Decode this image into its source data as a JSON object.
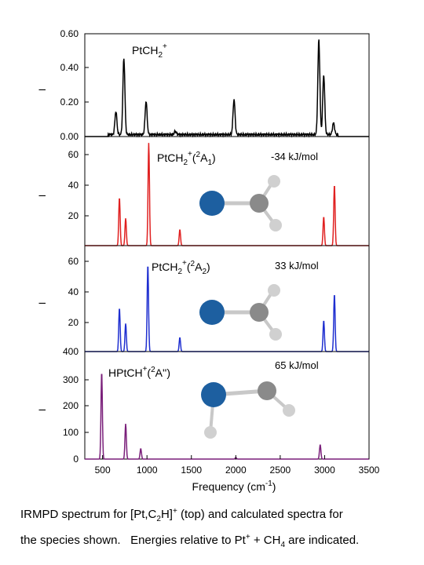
{
  "chart_data": {
    "type": "line",
    "xlabel": "Frequency (cm",
    "xlabel_sup": "-1",
    "xlabel_close": ")",
    "x_ticks": [
      "500",
      "1000",
      "1500",
      "2000",
      "2500",
      "3000",
      "3500"
    ],
    "x_tick_values": [
      500,
      1000,
      1500,
      2000,
      2500,
      3000,
      3500
    ],
    "xlim": [
      300,
      3500
    ],
    "panels": [
      {
        "name": "experiment",
        "label": "PtCH",
        "label_sub": "2",
        "label_sup": "+",
        "energy": "",
        "ylabel": "I",
        "y_ticks": [
          "0.00",
          "0.20",
          "0.40",
          "0.60"
        ],
        "ylim": [
          0,
          0.6
        ],
        "color": "#000000",
        "peaks": [
          {
            "x": 650,
            "y": 0.14
          },
          {
            "x": 740,
            "y": 0.46
          },
          {
            "x": 990,
            "y": 0.2
          },
          {
            "x": 1320,
            "y": 0.02
          },
          {
            "x": 1980,
            "y": 0.21
          },
          {
            "x": 2935,
            "y": 0.57
          },
          {
            "x": 2990,
            "y": 0.36
          },
          {
            "x": 3100,
            "y": 0.07
          }
        ]
      },
      {
        "name": "2A1",
        "label": "PtCH",
        "label_sub": "2",
        "label_sup": "+",
        "state_pre": "(",
        "state_sup": "2",
        "state": "A",
        "state_sub": "1",
        "state_post": ")",
        "energy": "-34 kJ/mol",
        "ylabel": "I",
        "y_ticks": [
          "20",
          "40",
          "60"
        ],
        "ylim": [
          0,
          66
        ],
        "color": "#e02020",
        "peaks": [
          {
            "x": 690,
            "y": 30
          },
          {
            "x": 760,
            "y": 17
          },
          {
            "x": 1020,
            "y": 64
          },
          {
            "x": 1370,
            "y": 10
          },
          {
            "x": 2990,
            "y": 18
          },
          {
            "x": 3110,
            "y": 38
          }
        ]
      },
      {
        "name": "2A2",
        "label": "PtCH",
        "label_sub": "2",
        "label_sup": "+",
        "state_pre": "(",
        "state_sup": "2",
        "state": "A",
        "state_sub": "2",
        "state_post": ")",
        "energy": "33 kJ/mol",
        "ylabel": "I",
        "y_ticks": [
          "20",
          "40",
          "60"
        ],
        "ylim": [
          0,
          66
        ],
        "color": "#1f2fd0",
        "peaks": [
          {
            "x": 690,
            "y": 28
          },
          {
            "x": 760,
            "y": 18
          },
          {
            "x": 1010,
            "y": 56
          },
          {
            "x": 1370,
            "y": 9
          },
          {
            "x": 2990,
            "y": 20
          },
          {
            "x": 3110,
            "y": 37
          }
        ]
      },
      {
        "name": "2A''",
        "label": "HPtCH",
        "label_sub": "",
        "label_sup": "+",
        "state_pre": "(",
        "state_sup": "2",
        "state": "A''",
        "state_sub": "",
        "state_post": ")",
        "energy": "65 kJ/mol",
        "ylabel": "I",
        "y_ticks": [
          "0",
          "100",
          "200",
          "300",
          "400"
        ],
        "ylim": [
          0,
          400
        ],
        "color": "#7a1f7a",
        "peaks": [
          {
            "x": 490,
            "y": 335
          },
          {
            "x": 760,
            "y": 135
          },
          {
            "x": 930,
            "y": 40
          },
          {
            "x": 2000,
            "y": 6
          },
          {
            "x": 2950,
            "y": 55
          }
        ]
      }
    ],
    "molecule_colors": {
      "pt": "#1d5fa0",
      "c": "#8a8a8a",
      "h": "#d0d0d0"
    }
  },
  "caption": {
    "line1_a": "IRMPD spectrum for [Pt,C",
    "line1_sub1": "2",
    "line1_b": "H]",
    "line1_sup": "+",
    "line1_c": " (top) and calculated spectra for",
    "line2_a": "the species shown.   Energies relative to Pt",
    "line2_sup": "+",
    "line2_b": " + CH",
    "line2_sub": "4",
    "line2_c": " are indicated."
  }
}
